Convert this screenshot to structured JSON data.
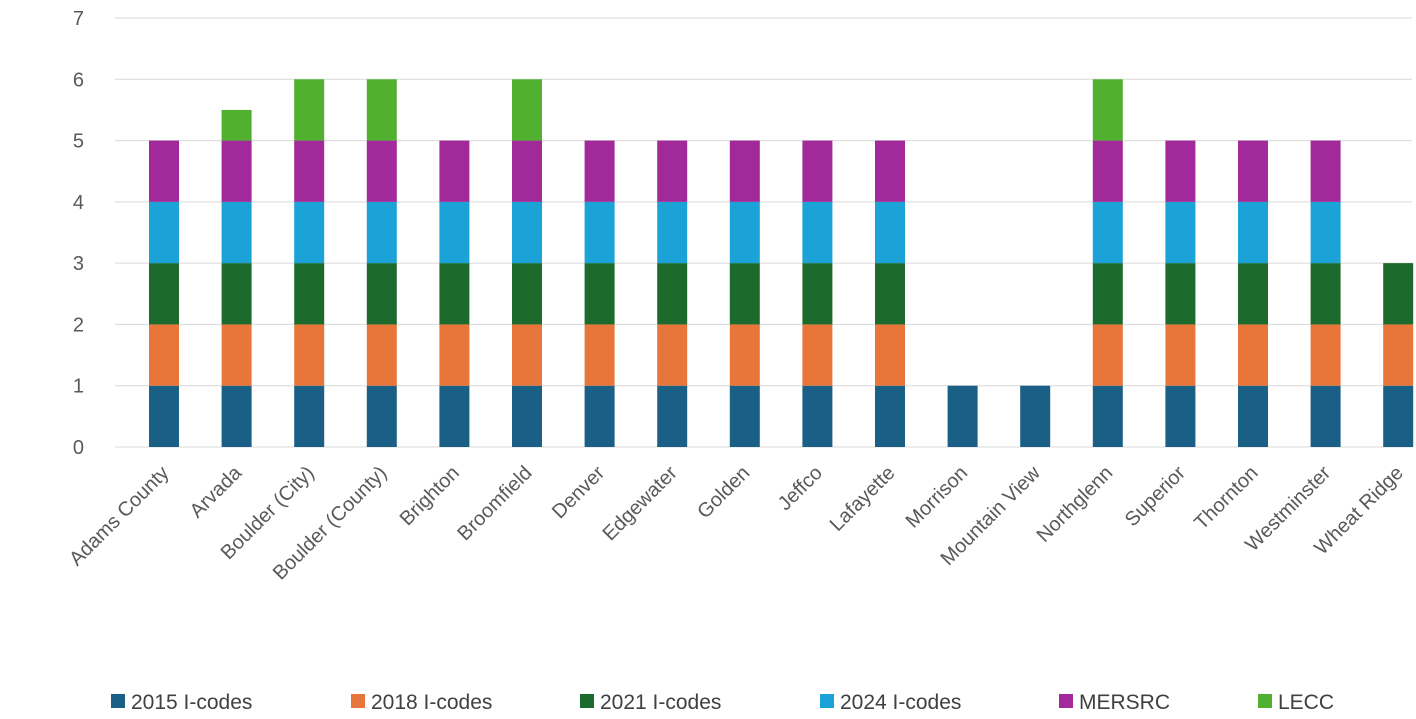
{
  "chart_data": {
    "type": "bar",
    "stacked": true,
    "title": "",
    "xlabel": "",
    "ylabel": "",
    "ylim": [
      0,
      7
    ],
    "yticks": [
      0,
      1,
      2,
      3,
      4,
      5,
      6,
      7
    ],
    "grid": true,
    "legend_position": "bottom",
    "categories": [
      "Adams County",
      "Arvada",
      "Boulder (City)",
      "Boulder (County)",
      "Brighton",
      "Broomfield",
      "Denver",
      "Edgewater",
      "Golden",
      "Jeffco",
      "Lafayette",
      "Morrison",
      "Mountain View",
      "Northglenn",
      "Superior",
      "Thornton",
      "Westminster",
      "Wheat Ridge"
    ],
    "series": [
      {
        "name": "2015 I-codes",
        "color": "#1a5f86",
        "values": [
          1,
          1,
          1,
          1,
          1,
          1,
          1,
          1,
          1,
          1,
          1,
          1,
          1,
          1,
          1,
          1,
          1,
          1
        ]
      },
      {
        "name": "2018 I-codes",
        "color": "#e8763b",
        "values": [
          1,
          1,
          1,
          1,
          1,
          1,
          1,
          1,
          1,
          1,
          1,
          0,
          0,
          1,
          1,
          1,
          1,
          1
        ]
      },
      {
        "name": "2021 I-codes",
        "color": "#1d6b2c",
        "values": [
          1,
          1,
          1,
          1,
          1,
          1,
          1,
          1,
          1,
          1,
          1,
          0,
          0,
          1,
          1,
          1,
          1,
          1
        ]
      },
      {
        "name": "2024 I-codes",
        "color": "#1ba3d8",
        "values": [
          1,
          1,
          1,
          1,
          1,
          1,
          1,
          1,
          1,
          1,
          1,
          0,
          0,
          1,
          1,
          1,
          1,
          0
        ]
      },
      {
        "name": "MERSRC",
        "color": "#a2299a",
        "values": [
          1,
          1,
          1,
          1,
          1,
          1,
          1,
          1,
          1,
          1,
          1,
          0,
          0,
          1,
          1,
          1,
          1,
          0
        ]
      },
      {
        "name": "LECC",
        "color": "#52b031",
        "values": [
          0,
          0.5,
          1,
          1,
          0,
          1,
          0,
          0,
          0,
          0,
          0,
          0,
          0,
          1,
          0,
          0,
          0,
          0
        ]
      }
    ]
  }
}
